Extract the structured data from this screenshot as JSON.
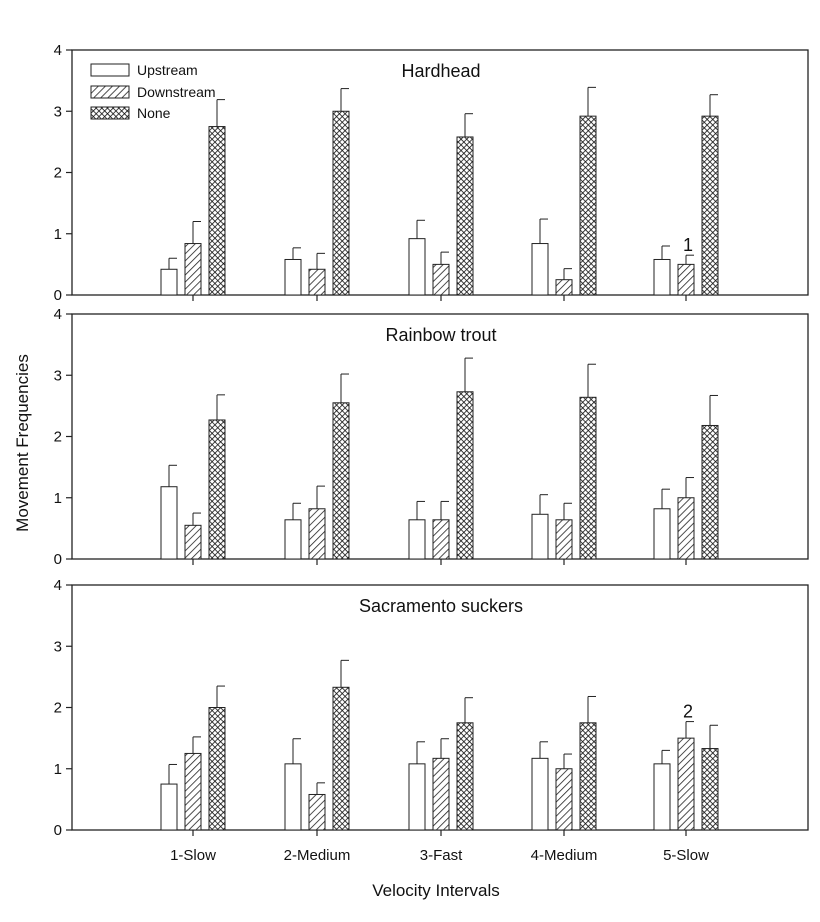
{
  "chart_data": {
    "type": "bar",
    "xlabel": "Velocity Intervals",
    "ylabel": "Movement Frequencies",
    "categories": [
      "1-Slow",
      "2-Medium",
      "3-Fast",
      "4-Medium",
      "5-Slow"
    ],
    "ylim": [
      0,
      4
    ],
    "yticks": [
      "0",
      "1",
      "2",
      "3",
      "4"
    ],
    "legend": {
      "placement": "top-left",
      "entries": [
        {
          "name": "Upstream",
          "pattern": "open"
        },
        {
          "name": "Downstream",
          "pattern": "diagonal-hatch"
        },
        {
          "name": "None",
          "pattern": "crosshatch"
        }
      ]
    },
    "panels": [
      {
        "title": "Hardhead",
        "series": [
          {
            "name": "Upstream",
            "values": [
              0.42,
              0.58,
              0.92,
              0.84,
              0.58
            ],
            "errors": [
              0.18,
              0.19,
              0.3,
              0.4,
              0.22
            ]
          },
          {
            "name": "Downstream",
            "values": [
              0.84,
              0.42,
              0.5,
              0.25,
              0.5
            ],
            "errors": [
              0.36,
              0.26,
              0.2,
              0.18,
              0.15
            ]
          },
          {
            "name": "None",
            "values": [
              2.75,
              3.0,
              2.58,
              2.92,
              2.92
            ],
            "errors": [
              0.44,
              0.37,
              0.38,
              0.47,
              0.35
            ]
          }
        ],
        "annotations": [
          {
            "text": "1",
            "category": "5-Slow",
            "series": "Downstream"
          }
        ]
      },
      {
        "title": "Rainbow trout",
        "series": [
          {
            "name": "Upstream",
            "values": [
              1.18,
              0.64,
              0.64,
              0.73,
              0.82
            ],
            "errors": [
              0.35,
              0.27,
              0.3,
              0.32,
              0.32
            ]
          },
          {
            "name": "Downstream",
            "values": [
              0.55,
              0.82,
              0.64,
              0.64,
              1.0
            ],
            "errors": [
              0.2,
              0.37,
              0.3,
              0.27,
              0.33
            ]
          },
          {
            "name": "None",
            "values": [
              2.27,
              2.55,
              2.73,
              2.64,
              2.18
            ],
            "errors": [
              0.41,
              0.47,
              0.55,
              0.54,
              0.49
            ]
          }
        ],
        "annotations": []
      },
      {
        "title": "Sacramento suckers",
        "series": [
          {
            "name": "Upstream",
            "values": [
              0.75,
              1.08,
              1.08,
              1.17,
              1.08
            ],
            "errors": [
              0.32,
              0.41,
              0.36,
              0.27,
              0.22
            ]
          },
          {
            "name": "Downstream",
            "values": [
              1.25,
              0.58,
              1.17,
              1.0,
              1.5
            ],
            "errors": [
              0.27,
              0.19,
              0.32,
              0.24,
              0.27
            ]
          },
          {
            "name": "None",
            "values": [
              2.0,
              2.33,
              1.75,
              1.75,
              1.33
            ],
            "errors": [
              0.35,
              0.44,
              0.41,
              0.43,
              0.38
            ]
          }
        ],
        "annotations": [
          {
            "text": "2",
            "category": "5-Slow",
            "series": "Downstream"
          }
        ]
      }
    ]
  }
}
